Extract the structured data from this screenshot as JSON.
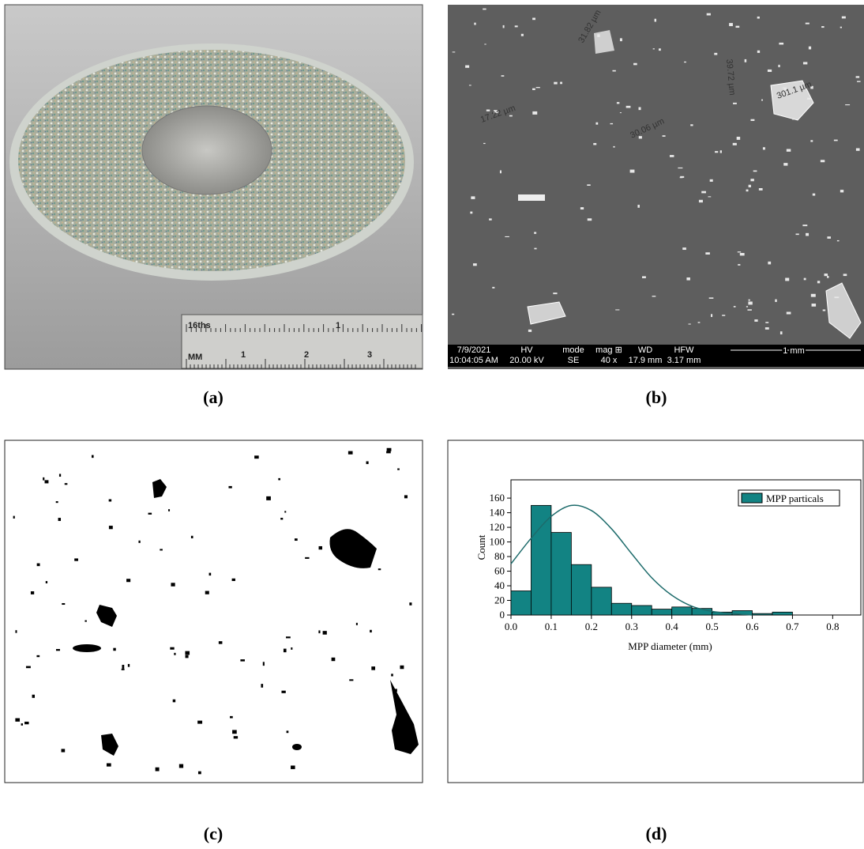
{
  "panels": {
    "a": {
      "label": "(a)",
      "ruler": [
        "16ths",
        "1",
        "MM",
        "1",
        "2",
        "3"
      ]
    },
    "b": {
      "label": "(b)",
      "measurements": [
        "31.82 µm",
        "301.1 µm",
        "17.22 µm",
        "30.06 µm",
        "39.72 µm"
      ],
      "info": [
        [
          "7/9/2021",
          "10:04:05 AM"
        ],
        [
          "HV",
          "20.00 kV"
        ],
        [
          "mode",
          "SE"
        ],
        [
          "mag ⊞",
          "40 x"
        ],
        [
          "WD",
          "17.9 mm"
        ],
        [
          "HFW",
          "3.17 mm"
        ]
      ],
      "scale": "1 mm"
    },
    "c": {
      "label": "(c)"
    },
    "d": {
      "label": "(d)"
    }
  },
  "chart_data": {
    "type": "histogram",
    "x_label": "MPP diameter (mm)",
    "y_label": "Count",
    "bins": [
      0,
      0.05,
      0.1,
      0.15,
      0.2,
      0.25,
      0.3,
      0.35,
      0.4,
      0.45,
      0.5,
      0.55,
      0.6,
      0.65,
      0.7
    ],
    "series": [
      {
        "name": "MPP particals",
        "color": "#128383",
        "values": [
          33,
          150,
          113,
          69,
          38,
          16,
          13,
          8,
          11,
          9,
          4,
          6,
          2,
          4
        ]
      }
    ],
    "fit": {
      "color": "#1d6b6b",
      "x": [
        0,
        0.05,
        0.1,
        0.15,
        0.2,
        0.25,
        0.3,
        0.35,
        0.4,
        0.45,
        0.5,
        0.55,
        0.6
      ],
      "values": [
        70,
        105,
        135,
        150,
        143,
        118,
        84,
        51,
        27,
        12,
        5,
        2,
        0
      ]
    },
    "xlim": [
      0,
      0.87
    ],
    "ylim": [
      0,
      185
    ],
    "xticks": [
      {
        "value": 0,
        "label": "0.0"
      },
      0.1,
      0.2,
      0.3,
      0.4,
      0.5,
      0.6,
      0.7,
      0.8
    ],
    "yticks": [
      0,
      20,
      40,
      60,
      80,
      100,
      120,
      140,
      160
    ],
    "legend": "upper right"
  }
}
